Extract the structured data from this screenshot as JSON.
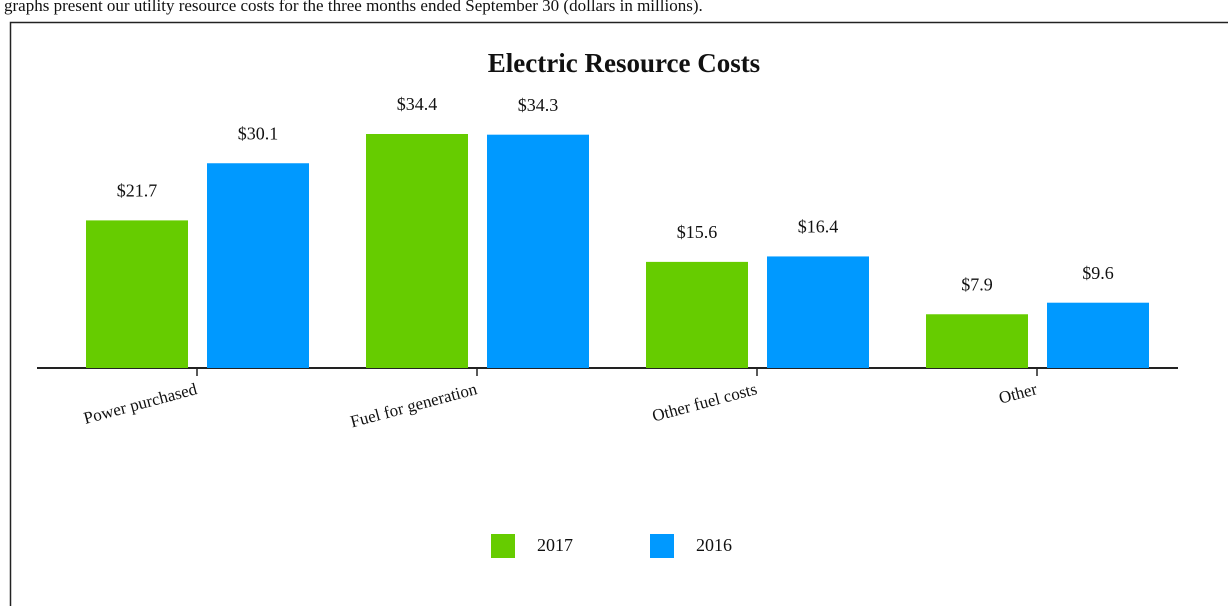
{
  "caption": "graphs present our utility resource costs for the three months ended September 30 (dollars in millions).",
  "chart_data": {
    "type": "bar",
    "title": "Electric Resource Costs",
    "categories": [
      "Power purchased",
      "Fuel for generation",
      "Other fuel costs",
      "Other"
    ],
    "series": [
      {
        "name": "2017",
        "color": "#66cc00",
        "values": [
          21.7,
          34.4,
          15.6,
          7.9
        ],
        "value_labels": [
          "$21.7",
          "$34.4",
          "$15.6",
          "$7.9"
        ]
      },
      {
        "name": "2016",
        "color": "#0099ff",
        "values": [
          30.1,
          34.3,
          16.4,
          9.6
        ],
        "value_labels": [
          "$30.1",
          "$34.3",
          "$16.4",
          "$9.6"
        ]
      }
    ],
    "legend": "bottom"
  }
}
